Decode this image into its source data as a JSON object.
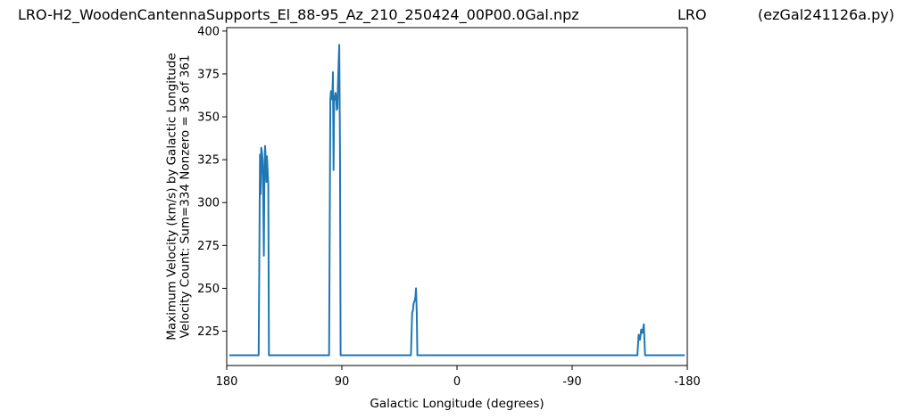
{
  "header": {
    "filename": "LRO-H2_WoodenCantennaSupports_El_88-95_Az_210_250424_00P00.0Gal.npz",
    "site": "LRO",
    "program": "(ezGal241126a.py)"
  },
  "chart_data": {
    "type": "line",
    "xlabel": "Galactic Longitude (degrees)",
    "ylabel_line1": "Maximum Velocity (km/s) by Galactic Longitude",
    "ylabel_line2": "Velocity Count: Sum=334 Nonzero = 36 of 361",
    "xlim": [
      180,
      -180
    ],
    "ylim": [
      205,
      402
    ],
    "xticks": [
      180,
      90,
      0,
      -90,
      -180
    ],
    "xtick_labels": [
      "180",
      "90",
      "0",
      "-90",
      "-180"
    ],
    "yticks": [
      225,
      250,
      275,
      300,
      325,
      350,
      375,
      400
    ],
    "grid": false,
    "color": "#1f77b4",
    "series": [
      {
        "x": [
          178,
          155,
          154,
          153.5,
          153,
          152.5,
          152,
          151.5,
          151,
          150.5,
          150,
          149.5,
          149,
          148.5,
          148,
          147.5,
          147,
          146,
          141,
          100,
          99,
          98.5,
          98,
          97.5,
          97,
          96.5,
          96,
          95.5,
          95,
          94.5,
          94,
          93.5,
          93,
          92.5,
          92,
          91.5,
          91,
          90.5,
          90,
          89,
          36,
          35,
          34.5,
          34,
          33.5,
          33,
          32.5,
          32,
          31.5,
          31,
          30,
          -140,
          -141,
          -142,
          -143,
          -144,
          -145,
          -146,
          -147,
          -148,
          -149,
          -178
        ],
        "y": [
          211,
          211,
          328,
          305,
          332,
          330,
          325,
          305,
          269,
          320,
          333,
          325,
          312,
          327,
          318,
          310,
          211,
          211,
          211,
          211,
          360,
          365,
          364,
          360,
          376,
          319,
          362,
          360,
          364,
          362,
          354,
          355,
          370,
          382,
          392,
          330,
          211,
          211,
          211,
          211,
          211,
          236,
          237,
          241,
          242,
          243,
          245,
          250,
          236,
          211,
          211,
          211,
          211,
          223,
          220,
          226,
          224,
          229,
          211,
          211,
          211,
          211
        ]
      }
    ]
  }
}
